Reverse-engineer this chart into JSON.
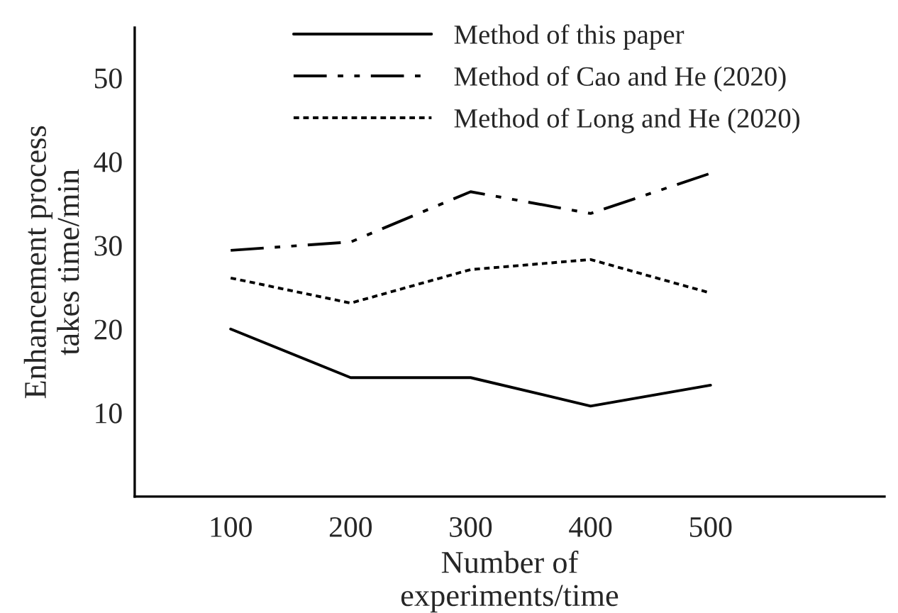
{
  "chart_data": {
    "type": "line",
    "xlabel": "Number of\nexperiments/time",
    "ylabel": "Enhancement process\ntakes time/min",
    "x": [
      100,
      200,
      300,
      400,
      500
    ],
    "series": [
      {
        "name": "Method of this paper",
        "color": "#000000",
        "line_style": "solid",
        "values": [
          20,
          14.2,
          14.2,
          10.8,
          13.3
        ]
      },
      {
        "name": "Method of Cao and He (2020)",
        "color": "#000000",
        "line_style": "dashdot",
        "values": [
          29.4,
          30.4,
          36.4,
          33.8,
          38.6
        ]
      },
      {
        "name": "Method of Long and He (2020)",
        "color": "#000000",
        "line_style": "dotted",
        "values": [
          26.1,
          23.1,
          27.1,
          28.3,
          24.3
        ]
      }
    ],
    "xlim": [
      20,
      645
    ],
    "ylim": [
      0,
      56
    ],
    "xticks": [
      100,
      200,
      300,
      400,
      500
    ],
    "yticks": [
      10,
      20,
      30,
      40,
      50
    ],
    "grid": false,
    "legend": "top",
    "marker": "none"
  }
}
